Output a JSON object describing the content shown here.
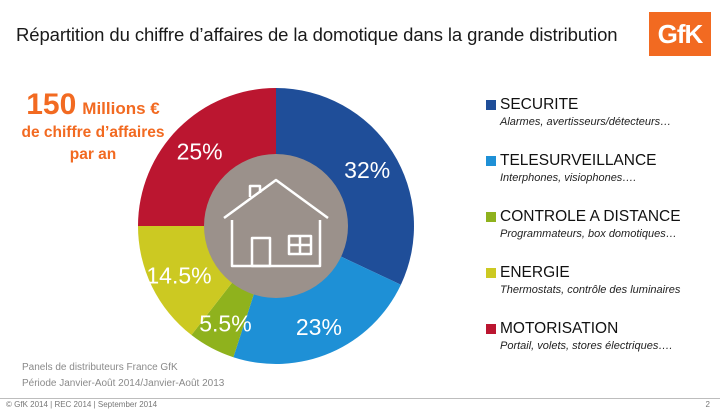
{
  "header": {
    "title": "Répartition du chiffre d’affaires de la domotique dans la grande distribution",
    "logo_text": "GfK"
  },
  "kpi": {
    "value": "150",
    "unit": "Millions €",
    "line2": "de chiffre d’affaires",
    "line3": "par an"
  },
  "chart_data": {
    "type": "pie",
    "donut": true,
    "center_icon": "house-icon",
    "start_angle_deg": 0,
    "direction": "clockwise",
    "categories": [
      "SECURITE",
      "TELESURVEILLANCE",
      "CONTROLE A DISTANCE",
      "ENERGIE",
      "MOTORISATION"
    ],
    "values": [
      32,
      23,
      5.5,
      14.5,
      25
    ],
    "labels": [
      "32%",
      "23%",
      "5.5%",
      "14.5%",
      "25%"
    ],
    "colors": [
      "#1f4e99",
      "#1e90d6",
      "#8fb21d",
      "#ccc922",
      "#bb1630"
    ],
    "legend_position": "right",
    "legend_descriptions": [
      "Alarmes, avertisseurs/détecteurs…",
      "Interphones, visiophones….",
      "Programmateurs, box domotiques…",
      "Thermostats, contrôle des luminaires",
      "Portail, volets, stores électriques…."
    ]
  },
  "source": {
    "line1": "Panels de distributeurs France GfK",
    "line2": "Période Janvier-Août 2014/Janvier-Août 2013"
  },
  "footer": {
    "text": "© GfK 2014 | REC 2014 | September 2014",
    "page": "2"
  }
}
